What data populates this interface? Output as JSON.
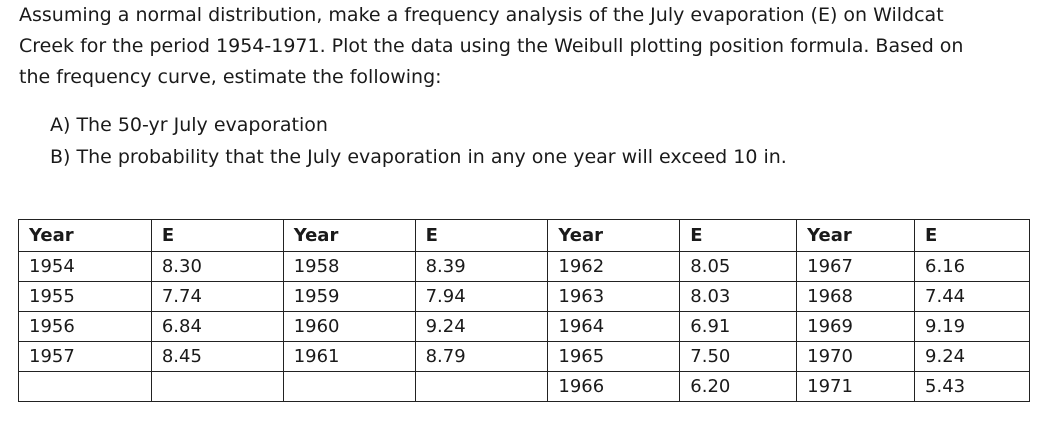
{
  "problem": {
    "line1": "Assuming a normal distribution, make a frequency analysis of the July evaporation (E) on Wildcat",
    "line2": "Creek for the period 1954-1971. Plot the data using the Weibull plotting position formula. Based on",
    "line3": "the frequency curve, estimate the following:",
    "items": [
      "A)  The 50-yr July evaporation",
      "B)  The probability that the July evaporation in any one year will exceed 10 in."
    ]
  },
  "table": {
    "headers": [
      "Year",
      "E",
      "Year",
      "E",
      "Year",
      "E",
      "Year",
      "E"
    ],
    "rows": [
      [
        "1954",
        "8.30",
        "1958",
        "8.39",
        "1962",
        "8.05",
        "1967",
        "6.16"
      ],
      [
        "1955",
        "7.74",
        "1959",
        "7.94",
        "1963",
        "8.03",
        "1968",
        "7.44"
      ],
      [
        "1956",
        "6.84",
        "1960",
        "9.24",
        "1964",
        "6.91",
        "1969",
        "9.19"
      ],
      [
        "1957",
        "8.45",
        "1961",
        "8.79",
        "1965",
        "7.50",
        "1970",
        "9.24"
      ],
      [
        "",
        "",
        "",
        "",
        "1966",
        "6.20",
        "1971",
        "5.43"
      ]
    ]
  }
}
